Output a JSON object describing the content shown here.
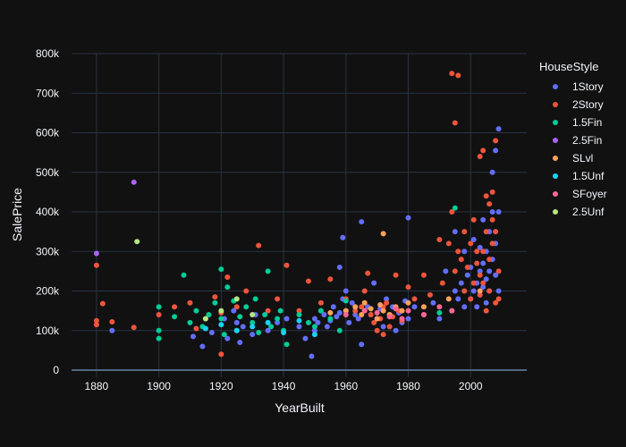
{
  "chart_data": {
    "type": "scatter",
    "xlabel": "YearBuilt",
    "ylabel": "SalePrice",
    "xlim": [
      1872,
      2018
    ],
    "ylim": [
      0,
      800000
    ],
    "xticks": [
      1880,
      1900,
      1920,
      1940,
      1960,
      1980,
      2000
    ],
    "xtick_labels": [
      "1880",
      "1900",
      "1920",
      "1940",
      "1960",
      "1980",
      "2000"
    ],
    "yticks": [
      0,
      100000,
      200000,
      300000,
      400000,
      500000,
      600000,
      700000,
      800000
    ],
    "ytick_labels": [
      "0",
      "100k",
      "200k",
      "300k",
      "400k",
      "500k",
      "600k",
      "700k",
      "800k"
    ],
    "grid": true,
    "legend_title": "HouseStyle",
    "legend_position": "right",
    "colors": {
      "background": "#111111",
      "grid": "#283442",
      "zeroline": "#506784",
      "text": "#f2f5fa"
    },
    "series": [
      {
        "name": "1Story",
        "color": "#636efa",
        "points": [
          [
            1885,
            100000
          ],
          [
            1911,
            85000
          ],
          [
            1914,
            60000
          ],
          [
            1917,
            95000
          ],
          [
            1921,
            130000
          ],
          [
            1922,
            80000
          ],
          [
            1924,
            150000
          ],
          [
            1925,
            120000
          ],
          [
            1926,
            70000
          ],
          [
            1927,
            110000
          ],
          [
            1930,
            90000
          ],
          [
            1931,
            140000
          ],
          [
            1935,
            100000
          ],
          [
            1938,
            120000
          ],
          [
            1941,
            130000
          ],
          [
            1945,
            110000
          ],
          [
            1947,
            80000
          ],
          [
            1949,
            35000
          ],
          [
            1950,
            130000
          ],
          [
            1950,
            100000
          ],
          [
            1951,
            120000
          ],
          [
            1952,
            150000
          ],
          [
            1953,
            140000
          ],
          [
            1954,
            110000
          ],
          [
            1955,
            125000
          ],
          [
            1956,
            160000
          ],
          [
            1957,
            135000
          ],
          [
            1958,
            145000
          ],
          [
            1958,
            260000
          ],
          [
            1959,
            180000
          ],
          [
            1959,
            335000
          ],
          [
            1960,
            150000
          ],
          [
            1960,
            200000
          ],
          [
            1961,
            120000
          ],
          [
            1962,
            170000
          ],
          [
            1963,
            140000
          ],
          [
            1964,
            130000
          ],
          [
            1965,
            375000
          ],
          [
            1965,
            65000
          ],
          [
            1966,
            150000
          ],
          [
            1967,
            160000
          ],
          [
            1968,
            140000
          ],
          [
            1969,
            220000
          ],
          [
            1970,
            130000
          ],
          [
            1971,
            155000
          ],
          [
            1972,
            110000
          ],
          [
            1973,
            180000
          ],
          [
            1974,
            140000
          ],
          [
            1975,
            160000
          ],
          [
            1976,
            100000
          ],
          [
            1977,
            145000
          ],
          [
            1978,
            120000
          ],
          [
            1979,
            175000
          ],
          [
            1980,
            385000
          ],
          [
            1980,
            130000
          ],
          [
            1982,
            160000
          ],
          [
            1985,
            140000
          ],
          [
            1988,
            170000
          ],
          [
            1990,
            130000
          ],
          [
            1992,
            250000
          ],
          [
            1994,
            150000
          ],
          [
            1995,
            200000
          ],
          [
            1995,
            350000
          ],
          [
            1996,
            180000
          ],
          [
            1997,
            220000
          ],
          [
            1998,
            300000
          ],
          [
            1998,
            160000
          ],
          [
            1999,
            240000
          ],
          [
            2000,
            180000
          ],
          [
            2000,
            260000
          ],
          [
            2001,
            200000
          ],
          [
            2001,
            330000
          ],
          [
            2002,
            220000
          ],
          [
            2002,
            160000
          ],
          [
            2003,
            250000
          ],
          [
            2003,
            310000
          ],
          [
            2003,
            190000
          ],
          [
            2004,
            270000
          ],
          [
            2004,
            210000
          ],
          [
            2004,
            380000
          ],
          [
            2005,
            230000
          ],
          [
            2005,
            300000
          ],
          [
            2005,
            170000
          ],
          [
            2006,
            350000
          ],
          [
            2006,
            250000
          ],
          [
            2006,
            200000
          ],
          [
            2007,
            280000
          ],
          [
            2007,
            400000
          ],
          [
            2007,
            500000
          ],
          [
            2008,
            555000
          ],
          [
            2008,
            320000
          ],
          [
            2008,
            240000
          ],
          [
            2009,
            610000
          ],
          [
            2009,
            400000
          ],
          [
            2009,
            200000
          ]
        ]
      },
      {
        "name": "2Story",
        "color": "#ef553b",
        "points": [
          [
            1880,
            265000
          ],
          [
            1880,
            125000
          ],
          [
            1880,
            115000
          ],
          [
            1882,
            168000
          ],
          [
            1885,
            122000
          ],
          [
            1892,
            108000
          ],
          [
            1900,
            140000
          ],
          [
            1905,
            160000
          ],
          [
            1910,
            170000
          ],
          [
            1912,
            105000
          ],
          [
            1915,
            130000
          ],
          [
            1918,
            185000
          ],
          [
            1920,
            40000
          ],
          [
            1920,
            145000
          ],
          [
            1922,
            235000
          ],
          [
            1925,
            160000
          ],
          [
            1928,
            200000
          ],
          [
            1932,
            315000
          ],
          [
            1935,
            150000
          ],
          [
            1938,
            180000
          ],
          [
            1941,
            265000
          ],
          [
            1945,
            150000
          ],
          [
            1948,
            225000
          ],
          [
            1952,
            170000
          ],
          [
            1955,
            230000
          ],
          [
            1960,
            180000
          ],
          [
            1963,
            150000
          ],
          [
            1965,
            160000
          ],
          [
            1966,
            200000
          ],
          [
            1967,
            245000
          ],
          [
            1968,
            140000
          ],
          [
            1969,
            120000
          ],
          [
            1970,
            100000
          ],
          [
            1971,
            130000
          ],
          [
            1972,
            160000
          ],
          [
            1972,
            90000
          ],
          [
            1973,
            170000
          ],
          [
            1974,
            110000
          ],
          [
            1975,
            135000
          ],
          [
            1976,
            240000
          ],
          [
            1977,
            150000
          ],
          [
            1978,
            125000
          ],
          [
            1980,
            210000
          ],
          [
            1982,
            180000
          ],
          [
            1985,
            240000
          ],
          [
            1987,
            190000
          ],
          [
            1990,
            330000
          ],
          [
            1991,
            220000
          ],
          [
            1993,
            320000
          ],
          [
            1994,
            750000
          ],
          [
            1994,
            400000
          ],
          [
            1995,
            625000
          ],
          [
            1995,
            250000
          ],
          [
            1996,
            745000
          ],
          [
            1996,
            300000
          ],
          [
            1997,
            280000
          ],
          [
            1998,
            350000
          ],
          [
            1998,
            200000
          ],
          [
            1999,
            260000
          ],
          [
            2000,
            320000
          ],
          [
            2000,
            180000
          ],
          [
            2001,
            220000
          ],
          [
            2001,
            380000
          ],
          [
            2002,
            270000
          ],
          [
            2002,
            300000
          ],
          [
            2003,
            540000
          ],
          [
            2003,
            240000
          ],
          [
            2003,
            190000
          ],
          [
            2004,
            555000
          ],
          [
            2004,
            300000
          ],
          [
            2004,
            220000
          ],
          [
            2005,
            440000
          ],
          [
            2005,
            350000
          ],
          [
            2005,
            150000
          ],
          [
            2006,
            420000
          ],
          [
            2006,
            280000
          ],
          [
            2006,
            200000
          ],
          [
            2007,
            450000
          ],
          [
            2007,
            380000
          ],
          [
            2007,
            320000
          ],
          [
            2008,
            580000
          ],
          [
            2008,
            350000
          ],
          [
            2008,
            170000
          ],
          [
            2009,
            250000
          ],
          [
            2009,
            180000
          ]
        ]
      },
      {
        "name": "1.5Fin",
        "color": "#00cc96",
        "points": [
          [
            1900,
            160000
          ],
          [
            1900,
            100000
          ],
          [
            1900,
            80000
          ],
          [
            1905,
            135000
          ],
          [
            1908,
            240000
          ],
          [
            1910,
            120000
          ],
          [
            1912,
            150000
          ],
          [
            1914,
            110000
          ],
          [
            1916,
            140000
          ],
          [
            1918,
            170000
          ],
          [
            1920,
            255000
          ],
          [
            1920,
            130000
          ],
          [
            1921,
            90000
          ],
          [
            1922,
            210000
          ],
          [
            1924,
            175000
          ],
          [
            1925,
            100000
          ],
          [
            1926,
            135000
          ],
          [
            1928,
            160000
          ],
          [
            1930,
            120000
          ],
          [
            1931,
            180000
          ],
          [
            1932,
            95000
          ],
          [
            1934,
            140000
          ],
          [
            1935,
            250000
          ],
          [
            1936,
            110000
          ],
          [
            1938,
            130000
          ],
          [
            1939,
            150000
          ],
          [
            1940,
            100000
          ],
          [
            1941,
            65000
          ],
          [
            1945,
            140000
          ],
          [
            1948,
            120000
          ],
          [
            1950,
            110000
          ],
          [
            1952,
            150000
          ],
          [
            1955,
            130000
          ],
          [
            1958,
            100000
          ],
          [
            1960,
            175000
          ],
          [
            1990,
            145000
          ],
          [
            1995,
            410000
          ]
        ]
      },
      {
        "name": "2.5Fin",
        "color": "#ab63fa",
        "points": [
          [
            1880,
            295000
          ],
          [
            1892,
            475000
          ]
        ]
      },
      {
        "name": "SLvl",
        "color": "#ffa15a",
        "points": [
          [
            1955,
            145000
          ],
          [
            1960,
            150000
          ],
          [
            1963,
            160000
          ],
          [
            1965,
            140000
          ],
          [
            1966,
            170000
          ],
          [
            1968,
            155000
          ],
          [
            1970,
            130000
          ],
          [
            1971,
            165000
          ],
          [
            1972,
            345000
          ],
          [
            1972,
            150000
          ],
          [
            1974,
            140000
          ],
          [
            1976,
            160000
          ],
          [
            1978,
            150000
          ],
          [
            1980,
            170000
          ],
          [
            1985,
            160000
          ],
          [
            1993,
            180000
          ],
          [
            2003,
            200000
          ]
        ]
      },
      {
        "name": "1.5Unf",
        "color": "#19d3f3",
        "points": [
          [
            1915,
            105000
          ],
          [
            1920,
            115000
          ],
          [
            1925,
            100000
          ],
          [
            1930,
            110000
          ],
          [
            1935,
            120000
          ],
          [
            1940,
            95000
          ],
          [
            1945,
            125000
          ],
          [
            1950,
            90000
          ]
        ]
      },
      {
        "name": "SFoyer",
        "color": "#ff6692",
        "points": [
          [
            1960,
            140000
          ],
          [
            1966,
            150000
          ],
          [
            1970,
            145000
          ],
          [
            1974,
            135000
          ],
          [
            1976,
            155000
          ],
          [
            1978,
            130000
          ],
          [
            1980,
            150000
          ],
          [
            1985,
            140000
          ],
          [
            1990,
            160000
          ],
          [
            1994,
            150000
          ]
        ]
      },
      {
        "name": "2.5Unf",
        "color": "#b6e880",
        "points": [
          [
            1893,
            325000
          ],
          [
            1915,
            130000
          ],
          [
            1920,
            150000
          ],
          [
            1925,
            180000
          ],
          [
            1930,
            140000
          ]
        ]
      }
    ]
  }
}
